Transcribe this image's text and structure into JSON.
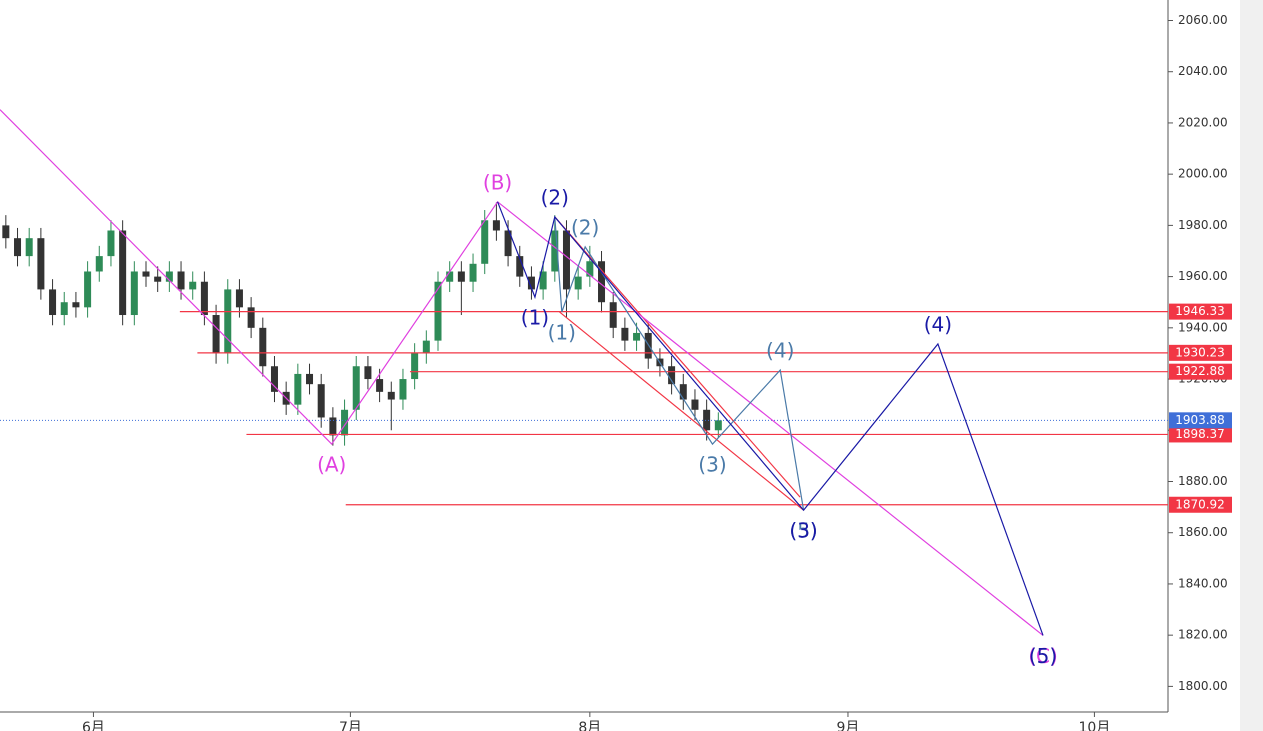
{
  "chart_data": {
    "type": "candlestick",
    "xlim": [
      0,
      100
    ],
    "ylim": [
      1790,
      2068
    ],
    "yticks": [
      {
        "value": 1800,
        "label": "1800.00"
      },
      {
        "value": 1820,
        "label": "1820.00"
      },
      {
        "value": 1840,
        "label": "1840.00"
      },
      {
        "value": 1860,
        "label": "1860.00"
      },
      {
        "value": 1880,
        "label": "1880.00"
      },
      {
        "value": 1900,
        "label": "1900.00"
      },
      {
        "value": 1920,
        "label": "1920.00"
      },
      {
        "value": 1940,
        "label": "1940.00"
      },
      {
        "value": 1960,
        "label": "1960.00"
      },
      {
        "value": 1980,
        "label": "1980.00"
      },
      {
        "value": 2000,
        "label": "2000.00"
      },
      {
        "value": 2020,
        "label": "2020.00"
      },
      {
        "value": 2040,
        "label": "2040.00"
      },
      {
        "value": 2060,
        "label": "2060.00"
      }
    ],
    "xticks": [
      {
        "value": 8,
        "label": "6月"
      },
      {
        "value": 30,
        "label": "7月"
      },
      {
        "value": 50.5,
        "label": "8月"
      },
      {
        "value": 72.6,
        "label": "9月"
      },
      {
        "value": 93.7,
        "label": "10月"
      }
    ],
    "up_color": "#2e8b57",
    "down_color": "#333333",
    "candles": [
      [
        1980,
        1984,
        1971,
        1975
      ],
      [
        1975,
        1979,
        1964,
        1968
      ],
      [
        1968,
        1979,
        1964,
        1975
      ],
      [
        1975,
        1979,
        1951,
        1955
      ],
      [
        1955,
        1959,
        1941,
        1945
      ],
      [
        1945,
        1954,
        1941,
        1950
      ],
      [
        1950,
        1954,
        1944,
        1948
      ],
      [
        1948,
        1966,
        1944,
        1962
      ],
      [
        1962,
        1972,
        1958,
        1968
      ],
      [
        1968,
        1982,
        1964,
        1978
      ],
      [
        1978,
        1982,
        1941,
        1945
      ],
      [
        1945,
        1966,
        1941,
        1962
      ],
      [
        1962,
        1966,
        1956,
        1960
      ],
      [
        1960,
        1964,
        1954,
        1958
      ],
      [
        1958,
        1966,
        1954,
        1962
      ],
      [
        1962,
        1966,
        1951,
        1955
      ],
      [
        1955,
        1962,
        1951,
        1958
      ],
      [
        1958,
        1962,
        1941,
        1945
      ],
      [
        1945,
        1949,
        1926,
        1930
      ],
      [
        1930,
        1959,
        1926,
        1955
      ],
      [
        1955,
        1959,
        1944,
        1948
      ],
      [
        1948,
        1952,
        1936,
        1940
      ],
      [
        1940,
        1944,
        1921,
        1925
      ],
      [
        1925,
        1929,
        1911,
        1915
      ],
      [
        1915,
        1919,
        1906,
        1910
      ],
      [
        1910,
        1926,
        1906,
        1922
      ],
      [
        1922,
        1926,
        1914,
        1918
      ],
      [
        1918,
        1922,
        1901,
        1905
      ],
      [
        1905,
        1909,
        1894,
        1898
      ],
      [
        1898,
        1912,
        1894,
        1908
      ],
      [
        1908,
        1929,
        1904,
        1925
      ],
      [
        1925,
        1929,
        1916,
        1920
      ],
      [
        1920,
        1924,
        1911,
        1915
      ],
      [
        1915,
        1919,
        1900,
        1912
      ],
      [
        1912,
        1924,
        1908,
        1920
      ],
      [
        1920,
        1934,
        1916,
        1930
      ],
      [
        1930,
        1939,
        1926,
        1935
      ],
      [
        1935,
        1962,
        1931,
        1958
      ],
      [
        1958,
        1966,
        1954,
        1962
      ],
      [
        1962,
        1966,
        1945,
        1958
      ],
      [
        1958,
        1969,
        1954,
        1965
      ],
      [
        1965,
        1986,
        1961,
        1982
      ],
      [
        1982,
        1989,
        1974,
        1978
      ],
      [
        1978,
        1982,
        1964,
        1968
      ],
      [
        1968,
        1972,
        1956,
        1960
      ],
      [
        1960,
        1964,
        1951,
        1955
      ],
      [
        1955,
        1966,
        1951,
        1962
      ],
      [
        1962,
        1984,
        1958,
        1978
      ],
      [
        1978,
        1982,
        1944,
        1955
      ],
      [
        1955,
        1964,
        1951,
        1960
      ],
      [
        1960,
        1972,
        1956,
        1966
      ],
      [
        1966,
        1970,
        1946,
        1950
      ],
      [
        1950,
        1954,
        1936,
        1940
      ],
      [
        1940,
        1944,
        1931,
        1935
      ],
      [
        1935,
        1942,
        1931,
        1938
      ],
      [
        1938,
        1942,
        1924,
        1928
      ],
      [
        1928,
        1932,
        1921,
        1925
      ],
      [
        1925,
        1929,
        1914,
        1918
      ],
      [
        1918,
        1922,
        1908,
        1912
      ],
      [
        1912,
        1916,
        1904,
        1908
      ],
      [
        1908,
        1912,
        1896,
        1900
      ],
      [
        1900,
        1907,
        1897,
        1903.88
      ]
    ],
    "levels": [
      {
        "value": 1946.33,
        "from": 15.4,
        "color": "#f23645"
      },
      {
        "value": 1930.23,
        "from": 16.9,
        "color": "#f23645"
      },
      {
        "value": 1922.88,
        "from": 35.1,
        "color": "#f23645"
      },
      {
        "value": 1898.37,
        "from": 21.1,
        "color": "#f23645"
      },
      {
        "value": 1870.92,
        "from": 29.6,
        "color": "#f23645"
      }
    ],
    "last_price": {
      "value": 1903.88,
      "color": "#3f6fd8"
    },
    "channels": [
      {
        "color": "#f23645",
        "points": [
          [
            47.5,
            1983.3
          ],
          [
            68.5,
            1873.9
          ]
        ]
      },
      {
        "color": "#f23645",
        "points": [
          [
            47.9,
            1946.2
          ],
          [
            68.8,
            1868.8
          ]
        ]
      }
    ],
    "waves": [
      {
        "color": "#e040e0",
        "points": [
          [
            0,
            2025.2
          ],
          [
            28.4,
            1894.6
          ],
          [
            42.6,
            1989.2
          ],
          [
            89.3,
            1819.9
          ]
        ],
        "labels": [
          null,
          "(A)",
          "(B)",
          "(C)"
        ]
      },
      {
        "color": "#4a7aa8",
        "points": [
          [
            47.5,
            1983.3
          ],
          [
            48.1,
            1946.2
          ],
          [
            50.1,
            1971.6
          ],
          [
            61.0,
            1894.6
          ],
          [
            66.8,
            1923.5
          ],
          [
            68.8,
            1868.8
          ]
        ],
        "labels": [
          null,
          "(1)",
          "(2)",
          "(3)",
          "(4)",
          "(5)"
        ]
      },
      {
        "color": "#1a1aa6",
        "points": [
          [
            42.6,
            1989.2
          ],
          [
            45.8,
            1952
          ],
          [
            47.5,
            1983.3
          ],
          [
            68.8,
            1868.8
          ],
          [
            80.3,
            1933.7
          ],
          [
            89.3,
            1819.9
          ]
        ],
        "labels": [
          null,
          "(1)",
          "(2)",
          "(3)",
          "(4)",
          "(5)"
        ]
      }
    ]
  }
}
